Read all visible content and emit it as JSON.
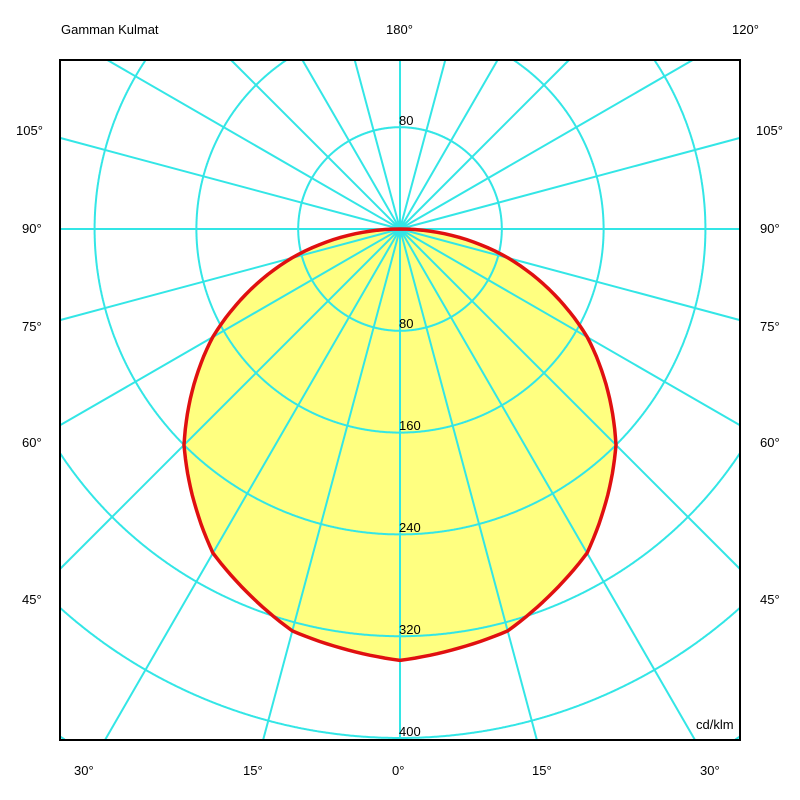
{
  "chart_data": {
    "type": "polar",
    "title": "Gamman Kulmat",
    "unit": "cd/klm",
    "radial_ticks": [
      80,
      160,
      240,
      320,
      400
    ],
    "radial_tick_top": "80",
    "radial_tick_labels": [
      "80",
      "160",
      "240",
      "320",
      "400"
    ],
    "angle_step_deg": 15,
    "top_labels": {
      "left": "Gamman Kulmat",
      "center": "180°",
      "right": "120°"
    },
    "side_labels": [
      "105°",
      "90°",
      "75°",
      "60°",
      "45°"
    ],
    "bottom_labels": [
      "30°",
      "15°",
      "0°",
      "15°",
      "30°"
    ],
    "series": [
      {
        "gamma_deg": [
          0,
          15,
          30,
          45,
          60,
          75,
          90
        ],
        "values": [
          339,
          327,
          294,
          240,
          170,
          88,
          0
        ]
      }
    ],
    "colors": {
      "grid": "#33e6e6",
      "curve": "#e01010",
      "fill": "#ffff80",
      "frame": "#000000"
    },
    "grid": true
  }
}
